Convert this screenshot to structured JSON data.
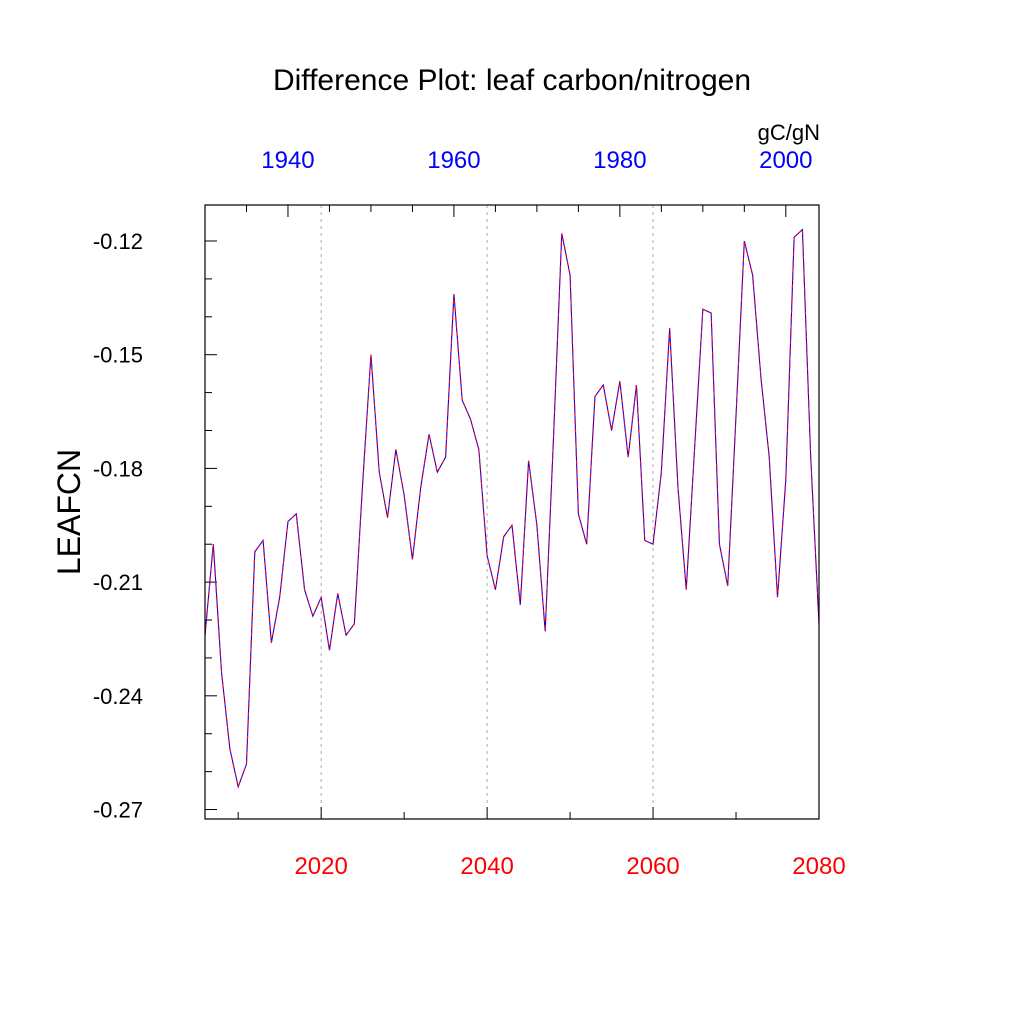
{
  "chart_data": {
    "type": "line",
    "title": "Difference Plot: leaf carbon/nitrogen",
    "units": "gC/gN",
    "ylabel": "LEAFCN",
    "ylim": [
      -0.2725,
      -0.1105
    ],
    "yticks": [
      -0.12,
      -0.15,
      -0.18,
      -0.21,
      -0.24,
      -0.27
    ],
    "ytick_labels": [
      "-0.12",
      "-0.15",
      "-0.18",
      "-0.21",
      "-0.24",
      "-0.27"
    ],
    "bottom_axis": {
      "range": [
        2006,
        2080
      ],
      "ticks": [
        2020,
        2040,
        2060,
        2080
      ],
      "labels": [
        "2020",
        "2040",
        "2060",
        "2080"
      ],
      "color": "#ff0000"
    },
    "top_axis": {
      "range": [
        1930,
        2004
      ],
      "ticks": [
        1940,
        1960,
        1980,
        2000
      ],
      "labels": [
        "1940",
        "1960",
        "1980",
        "2000"
      ],
      "color": "#0000ff"
    },
    "gridlines_x": [
      2020,
      2040,
      2060
    ],
    "series": [
      {
        "name": "difference",
        "colors": [
          "#0000ff",
          "#ff0000"
        ],
        "x": [
          2006,
          2007,
          2008,
          2009,
          2010,
          2011,
          2012,
          2013,
          2014,
          2015,
          2016,
          2017,
          2018,
          2019,
          2020,
          2021,
          2022,
          2023,
          2024,
          2025,
          2026,
          2027,
          2028,
          2029,
          2030,
          2031,
          2032,
          2033,
          2034,
          2035,
          2036,
          2037,
          2038,
          2039,
          2040,
          2041,
          2042,
          2043,
          2044,
          2045,
          2046,
          2047,
          2048,
          2049,
          2050,
          2051,
          2052,
          2053,
          2054,
          2055,
          2056,
          2057,
          2058,
          2059,
          2060,
          2061,
          2062,
          2063,
          2064,
          2065,
          2066,
          2067,
          2068,
          2069,
          2070,
          2071,
          2072,
          2073,
          2074,
          2075,
          2076,
          2077,
          2078,
          2079,
          2080
        ],
        "values": [
          -0.224,
          -0.2,
          -0.234,
          -0.254,
          -0.264,
          -0.258,
          -0.202,
          -0.199,
          -0.226,
          -0.214,
          -0.194,
          -0.192,
          -0.212,
          -0.219,
          -0.214,
          -0.228,
          -0.213,
          -0.224,
          -0.221,
          -0.184,
          -0.15,
          -0.181,
          -0.193,
          -0.175,
          -0.187,
          -0.204,
          -0.185,
          -0.171,
          -0.181,
          -0.177,
          -0.134,
          -0.162,
          -0.167,
          -0.175,
          -0.203,
          -0.212,
          -0.198,
          -0.195,
          -0.216,
          -0.178,
          -0.195,
          -0.223,
          -0.172,
          -0.118,
          -0.129,
          -0.192,
          -0.2,
          -0.161,
          -0.158,
          -0.17,
          -0.157,
          -0.177,
          -0.158,
          -0.199,
          -0.2,
          -0.181,
          -0.143,
          -0.185,
          -0.212,
          -0.175,
          -0.138,
          -0.139,
          -0.2,
          -0.211,
          -0.166,
          -0.12,
          -0.129,
          -0.156,
          -0.177,
          -0.214,
          -0.183,
          -0.119,
          -0.117,
          -0.177,
          -0.221
        ]
      }
    ]
  }
}
